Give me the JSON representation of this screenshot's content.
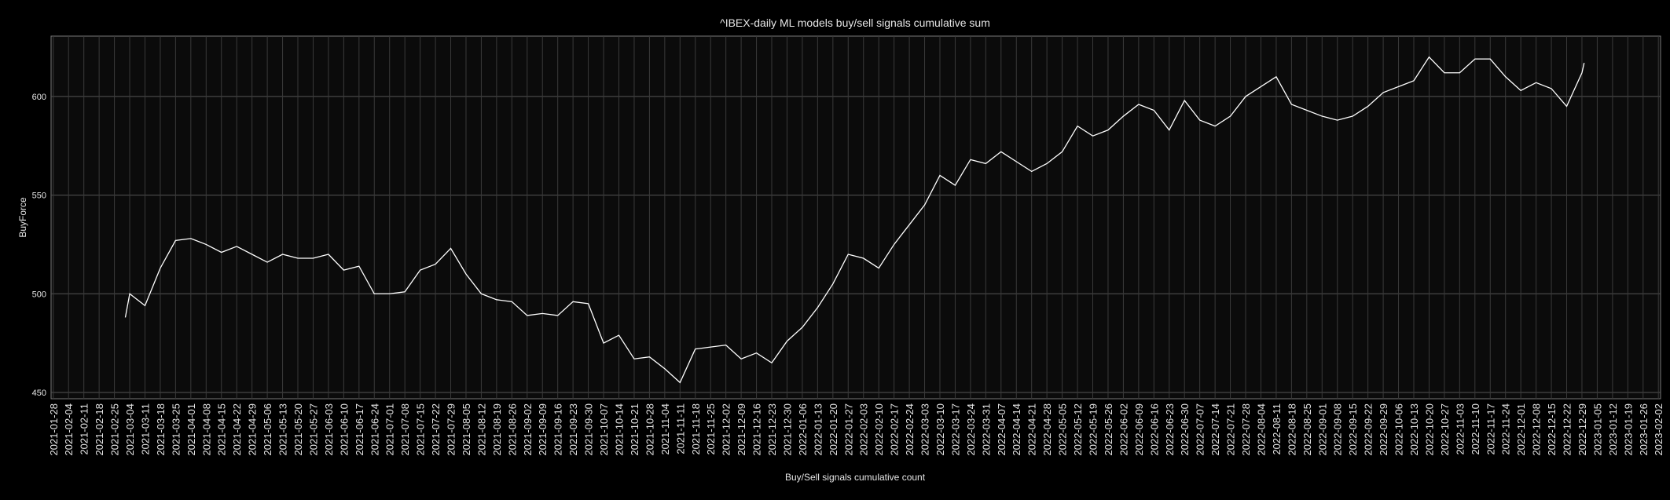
{
  "chart_data": {
    "type": "line",
    "title": "^IBEX-daily ML models buy/sell signals cumulative sum",
    "x_label": "Buy/Sell signals cumulative count",
    "y_label": "BuyForce",
    "x": [
      "2021-03-02",
      "2021-03-04",
      "2021-03-11",
      "2021-03-18",
      "2021-03-25",
      "2021-04-01",
      "2021-04-08",
      "2021-04-15",
      "2021-04-22",
      "2021-04-29",
      "2021-05-06",
      "2021-05-13",
      "2021-05-20",
      "2021-05-27",
      "2021-06-03",
      "2021-06-10",
      "2021-06-17",
      "2021-06-24",
      "2021-07-01",
      "2021-07-08",
      "2021-07-15",
      "2021-07-22",
      "2021-07-29",
      "2021-08-05",
      "2021-08-12",
      "2021-08-19",
      "2021-08-26",
      "2021-09-02",
      "2021-09-09",
      "2021-09-16",
      "2021-09-23",
      "2021-09-30",
      "2021-10-07",
      "2021-10-14",
      "2021-10-21",
      "2021-10-28",
      "2021-11-04",
      "2021-11-11",
      "2021-11-18",
      "2021-11-25",
      "2021-12-02",
      "2021-12-09",
      "2021-12-16",
      "2021-12-23",
      "2021-12-30",
      "2022-01-06",
      "2022-01-13",
      "2022-01-20",
      "2022-01-27",
      "2022-02-03",
      "2022-02-10",
      "2022-02-17",
      "2022-02-24",
      "2022-03-03",
      "2022-03-10",
      "2022-03-17",
      "2022-03-24",
      "2022-03-31",
      "2022-04-07",
      "2022-04-14",
      "2022-04-21",
      "2022-04-28",
      "2022-05-05",
      "2022-05-12",
      "2022-05-19",
      "2022-05-26",
      "2022-06-02",
      "2022-06-09",
      "2022-06-16",
      "2022-06-23",
      "2022-06-30",
      "2022-07-07",
      "2022-07-14",
      "2022-07-21",
      "2022-07-28",
      "2022-08-04",
      "2022-08-11",
      "2022-08-18",
      "2022-08-25",
      "2022-09-01",
      "2022-09-08",
      "2022-09-15",
      "2022-09-22",
      "2022-09-29",
      "2022-10-06",
      "2022-10-13",
      "2022-10-20",
      "2022-10-27",
      "2022-11-03",
      "2022-11-10",
      "2022-11-17",
      "2022-11-24",
      "2022-12-01",
      "2022-12-08",
      "2022-12-15",
      "2022-12-22",
      "2022-12-29",
      "2022-12-30"
    ],
    "series": [
      {
        "name": "BuyForce",
        "color": "#ffffff",
        "values": [
          488,
          500,
          494,
          513,
          527,
          528,
          525,
          521,
          524,
          520,
          516,
          520,
          518,
          518,
          520,
          512,
          514,
          500,
          500,
          501,
          512,
          515,
          523,
          510,
          500,
          497,
          496,
          489,
          490,
          489,
          496,
          495,
          475,
          479,
          467,
          468,
          462,
          455,
          472,
          473,
          474,
          467,
          470,
          465,
          476,
          483,
          493,
          505,
          520,
          518,
          513,
          525,
          535,
          545,
          560,
          555,
          568,
          566,
          572,
          567,
          562,
          566,
          572,
          585,
          580,
          583,
          590,
          596,
          593,
          583,
          598,
          588,
          585,
          590,
          600,
          605,
          610,
          596,
          593,
          590,
          588,
          590,
          595,
          602,
          605,
          608,
          620,
          612,
          612,
          619,
          619,
          610,
          603,
          607,
          604,
          595,
          612,
          617
        ]
      }
    ],
    "xlim": [
      "2021-01-27",
      "2023-02-03"
    ],
    "xticks": [
      "2021-01-28",
      "2021-02-04",
      "2021-02-11",
      "2021-02-18",
      "2021-02-25",
      "2021-03-04",
      "2021-03-11",
      "2021-03-18",
      "2021-03-25",
      "2021-04-01",
      "2021-04-08",
      "2021-04-15",
      "2021-04-22",
      "2021-04-29",
      "2021-05-06",
      "2021-05-13",
      "2021-05-20",
      "2021-05-27",
      "2021-06-03",
      "2021-06-10",
      "2021-06-17",
      "2021-06-24",
      "2021-07-01",
      "2021-07-08",
      "2021-07-15",
      "2021-07-22",
      "2021-07-29",
      "2021-08-05",
      "2021-08-12",
      "2021-08-19",
      "2021-08-26",
      "2021-09-02",
      "2021-09-09",
      "2021-09-16",
      "2021-09-23",
      "2021-09-30",
      "2021-10-07",
      "2021-10-14",
      "2021-10-21",
      "2021-10-28",
      "2021-11-04",
      "2021-11-11",
      "2021-11-18",
      "2021-11-25",
      "2021-12-02",
      "2021-12-09",
      "2021-12-16",
      "2021-12-23",
      "2021-12-30",
      "2022-01-06",
      "2022-01-13",
      "2022-01-20",
      "2022-01-27",
      "2022-02-03",
      "2022-02-10",
      "2022-02-17",
      "2022-02-24",
      "2022-03-03",
      "2022-03-10",
      "2022-03-17",
      "2022-03-24",
      "2022-03-31",
      "2022-04-07",
      "2022-04-14",
      "2022-04-21",
      "2022-04-28",
      "2022-05-05",
      "2022-05-12",
      "2022-05-19",
      "2022-05-26",
      "2022-06-02",
      "2022-06-09",
      "2022-06-16",
      "2022-06-23",
      "2022-06-30",
      "2022-07-07",
      "2022-07-14",
      "2022-07-21",
      "2022-07-28",
      "2022-08-04",
      "2022-08-11",
      "2022-08-18",
      "2022-08-25",
      "2022-09-01",
      "2022-09-08",
      "2022-09-15",
      "2022-09-22",
      "2022-09-29",
      "2022-10-06",
      "2022-10-13",
      "2022-10-20",
      "2022-10-27",
      "2022-11-03",
      "2022-11-10",
      "2022-11-17",
      "2022-11-24",
      "2022-12-01",
      "2022-12-08",
      "2022-12-15",
      "2022-12-22",
      "2022-12-29",
      "2023-01-05",
      "2023-01-12",
      "2023-01-19",
      "2023-01-26",
      "2023-02-02"
    ],
    "ylim": [
      446.8,
      630.6
    ],
    "yticks": [
      450,
      500,
      550,
      600
    ],
    "grid": true
  }
}
